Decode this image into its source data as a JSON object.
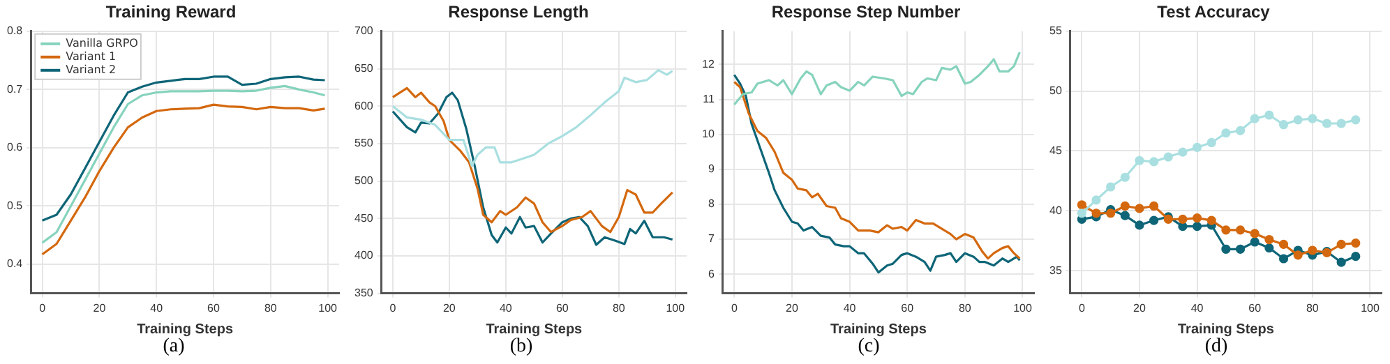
{
  "chart_data": [
    {
      "type": "line",
      "title": "Training Reward",
      "xlabel": "Training Steps",
      "annotations": [
        "(a)"
      ],
      "xlim": [
        -4,
        104
      ],
      "xticks": [
        0,
        20,
        40,
        60,
        80,
        100
      ],
      "ylim": [
        0.35,
        0.8
      ],
      "yticks": [
        0.4,
        0.5,
        0.6,
        0.7,
        0.8
      ],
      "grid": true,
      "legend": "top left",
      "marker": "none",
      "series": [
        {
          "name": "Vanilla GRPO",
          "color": "#86d3bd",
          "x": [
            0,
            5,
            10,
            15,
            20,
            25,
            30,
            35,
            40,
            45,
            50,
            55,
            60,
            65,
            70,
            75,
            80,
            85,
            90,
            95,
            99
          ],
          "values": [
            0.437,
            0.455,
            0.5,
            0.545,
            0.59,
            0.635,
            0.675,
            0.69,
            0.695,
            0.697,
            0.697,
            0.697,
            0.698,
            0.698,
            0.697,
            0.698,
            0.703,
            0.706,
            0.7,
            0.695,
            0.69
          ]
        },
        {
          "name": "Variant 1",
          "color": "#d4680e",
          "x": [
            0,
            5,
            10,
            15,
            20,
            25,
            30,
            35,
            40,
            45,
            50,
            55,
            60,
            65,
            70,
            75,
            80,
            85,
            90,
            95,
            99
          ],
          "values": [
            0.417,
            0.435,
            0.475,
            0.515,
            0.56,
            0.6,
            0.635,
            0.652,
            0.663,
            0.666,
            0.667,
            0.668,
            0.674,
            0.671,
            0.67,
            0.666,
            0.67,
            0.668,
            0.668,
            0.664,
            0.667
          ]
        },
        {
          "name": "Variant 2",
          "color": "#0e6577",
          "x": [
            0,
            5,
            10,
            15,
            20,
            25,
            30,
            35,
            40,
            45,
            50,
            55,
            60,
            65,
            70,
            75,
            80,
            85,
            90,
            95,
            99
          ],
          "values": [
            0.475,
            0.485,
            0.52,
            0.565,
            0.61,
            0.655,
            0.695,
            0.705,
            0.712,
            0.715,
            0.718,
            0.718,
            0.722,
            0.722,
            0.708,
            0.71,
            0.718,
            0.721,
            0.722,
            0.717,
            0.716
          ]
        }
      ]
    },
    {
      "type": "line",
      "title": "Response Length",
      "xlabel": "Training Steps",
      "annotations": [
        "(b)"
      ],
      "xlim": [
        -4,
        104
      ],
      "xticks": [
        0,
        20,
        40,
        60,
        80,
        100
      ],
      "ylim": [
        350,
        700
      ],
      "yticks": [
        350,
        400,
        450,
        500,
        550,
        600,
        650,
        700
      ],
      "grid": true,
      "marker": "none",
      "series": [
        {
          "color": "#a9dfe0",
          "x": [
            0,
            5,
            10,
            15,
            20,
            25,
            28,
            30,
            33,
            36,
            38,
            42,
            46,
            50,
            55,
            60,
            65,
            70,
            75,
            80,
            82,
            86,
            90,
            94,
            97,
            99
          ],
          "values": [
            600,
            585,
            582,
            575,
            555,
            555,
            520,
            535,
            545,
            545,
            525,
            525,
            530,
            535,
            550,
            560,
            572,
            588,
            605,
            620,
            638,
            632,
            635,
            648,
            642,
            647
          ]
        },
        {
          "color": "#d4680e",
          "x": [
            0,
            5,
            8,
            10,
            13,
            15,
            18,
            20,
            24,
            27,
            30,
            32,
            35,
            38,
            40,
            44,
            47,
            50,
            53,
            56,
            60,
            63,
            67,
            70,
            74,
            77,
            80,
            83,
            86,
            89,
            92,
            95,
            99
          ],
          "values": [
            612,
            624,
            612,
            618,
            605,
            600,
            580,
            555,
            540,
            525,
            490,
            455,
            445,
            460,
            455,
            465,
            478,
            470,
            445,
            432,
            440,
            448,
            452,
            460,
            440,
            432,
            452,
            488,
            482,
            458,
            458,
            470,
            485
          ]
        },
        {
          "color": "#0e6577",
          "x": [
            0,
            5,
            8,
            10,
            13,
            16,
            19,
            21,
            23,
            26,
            29,
            32,
            35,
            37,
            40,
            42,
            45,
            47,
            50,
            53,
            56,
            60,
            63,
            66,
            69,
            72,
            75,
            79,
            82,
            84,
            86,
            89,
            92,
            96,
            99
          ],
          "values": [
            593,
            572,
            565,
            578,
            577,
            590,
            612,
            618,
            608,
            570,
            520,
            465,
            428,
            418,
            438,
            430,
            452,
            438,
            440,
            418,
            430,
            445,
            450,
            452,
            440,
            415,
            425,
            420,
            416,
            436,
            430,
            447,
            425,
            425,
            422
          ]
        }
      ]
    },
    {
      "type": "line",
      "title": "Response Step Number",
      "xlabel": "Training Steps",
      "annotations": [
        "(c)"
      ],
      "xlim": [
        -4,
        104
      ],
      "xticks": [
        0,
        20,
        40,
        60,
        80,
        100
      ],
      "ylim": [
        5.45,
        12.95
      ],
      "yticks": [
        6,
        7,
        8,
        9,
        10,
        11,
        12
      ],
      "grid": true,
      "marker": "none",
      "series": [
        {
          "color": "#86d3bd",
          "x": [
            0,
            3,
            6,
            8,
            12,
            15,
            17,
            20,
            23,
            25,
            27,
            30,
            32,
            35,
            37,
            40,
            43,
            45,
            48,
            52,
            55,
            58,
            60,
            62,
            65,
            67,
            70,
            72,
            75,
            77,
            80,
            82,
            85,
            88,
            90,
            92,
            95,
            97,
            99
          ],
          "values": [
            10.85,
            11.15,
            11.2,
            11.45,
            11.55,
            11.4,
            11.55,
            11.15,
            11.6,
            11.8,
            11.7,
            11.15,
            11.4,
            11.5,
            11.35,
            11.25,
            11.5,
            11.4,
            11.65,
            11.6,
            11.55,
            11.1,
            11.2,
            11.15,
            11.5,
            11.6,
            11.55,
            11.9,
            11.85,
            11.95,
            11.45,
            11.5,
            11.7,
            11.95,
            12.15,
            11.8,
            11.8,
            11.95,
            12.35
          ]
        },
        {
          "color": "#d4680e",
          "x": [
            0,
            2,
            5,
            8,
            11,
            14,
            17,
            20,
            22,
            25,
            27,
            29,
            32,
            35,
            37,
            40,
            43,
            47,
            50,
            53,
            55,
            58,
            60,
            63,
            66,
            69,
            72,
            75,
            77,
            80,
            83,
            86,
            88,
            90,
            93,
            95,
            97,
            99
          ],
          "values": [
            11.5,
            11.35,
            10.6,
            10.1,
            9.9,
            9.5,
            8.9,
            8.7,
            8.45,
            8.4,
            8.2,
            8.3,
            7.95,
            7.9,
            7.6,
            7.5,
            7.25,
            7.25,
            7.2,
            7.4,
            7.3,
            7.35,
            7.25,
            7.55,
            7.45,
            7.45,
            7.3,
            7.15,
            7.0,
            7.15,
            7.05,
            6.65,
            6.45,
            6.6,
            6.75,
            6.8,
            6.6,
            6.45
          ]
        },
        {
          "color": "#0e6577",
          "x": [
            0,
            2,
            4,
            6,
            9,
            12,
            14,
            17,
            20,
            22,
            24,
            27,
            30,
            33,
            35,
            38,
            40,
            43,
            45,
            48,
            50,
            53,
            55,
            58,
            60,
            63,
            66,
            68,
            70,
            73,
            75,
            77,
            80,
            83,
            85,
            87,
            90,
            93,
            95,
            98,
            99
          ],
          "values": [
            11.7,
            11.45,
            11.1,
            10.3,
            9.6,
            8.9,
            8.4,
            7.9,
            7.5,
            7.45,
            7.25,
            7.35,
            7.1,
            7.05,
            6.85,
            6.8,
            6.8,
            6.6,
            6.6,
            6.3,
            6.05,
            6.25,
            6.3,
            6.55,
            6.6,
            6.5,
            6.35,
            6.1,
            6.5,
            6.55,
            6.6,
            6.35,
            6.6,
            6.5,
            6.35,
            6.35,
            6.25,
            6.45,
            6.35,
            6.5,
            6.4
          ]
        }
      ]
    },
    {
      "type": "line",
      "title": "Test Accuracy",
      "xlabel": "Training Steps",
      "annotations": [
        "(d)"
      ],
      "xlim": [
        -4,
        104
      ],
      "xticks": [
        0,
        20,
        40,
        60,
        80,
        100
      ],
      "ylim": [
        33.1,
        55
      ],
      "yticks": [
        35,
        40,
        45,
        50,
        55
      ],
      "grid": true,
      "marker": "circle",
      "series": [
        {
          "color": "#a9dfe0",
          "x": [
            0,
            5,
            10,
            15,
            20,
            25,
            30,
            35,
            40,
            45,
            50,
            55,
            60,
            65,
            70,
            75,
            80,
            85,
            90,
            95
          ],
          "values": [
            39.8,
            40.9,
            42.0,
            42.8,
            44.2,
            44.1,
            44.5,
            44.9,
            45.3,
            45.7,
            46.5,
            46.7,
            47.7,
            48.0,
            47.2,
            47.6,
            47.7,
            47.3,
            47.3,
            47.6
          ]
        },
        {
          "color": "#d4680e",
          "x": [
            0,
            5,
            10,
            15,
            20,
            25,
            30,
            35,
            40,
            45,
            50,
            55,
            60,
            65,
            70,
            75,
            80,
            85,
            90,
            95
          ],
          "values": [
            40.5,
            39.8,
            39.8,
            40.4,
            40.2,
            40.4,
            39.3,
            39.3,
            39.4,
            39.2,
            38.4,
            38.4,
            38.1,
            37.6,
            37.2,
            36.3,
            36.7,
            36.5,
            37.2,
            37.3
          ]
        },
        {
          "color": "#0e6577",
          "x": [
            0,
            5,
            10,
            15,
            20,
            25,
            30,
            35,
            40,
            45,
            50,
            55,
            60,
            65,
            70,
            75,
            80,
            85,
            90,
            95
          ],
          "values": [
            39.3,
            39.5,
            40.1,
            39.6,
            38.8,
            39.2,
            39.5,
            38.7,
            38.7,
            38.8,
            36.8,
            36.8,
            37.4,
            36.9,
            36.0,
            36.7,
            36.3,
            36.6,
            35.7,
            36.2
          ]
        }
      ]
    }
  ]
}
